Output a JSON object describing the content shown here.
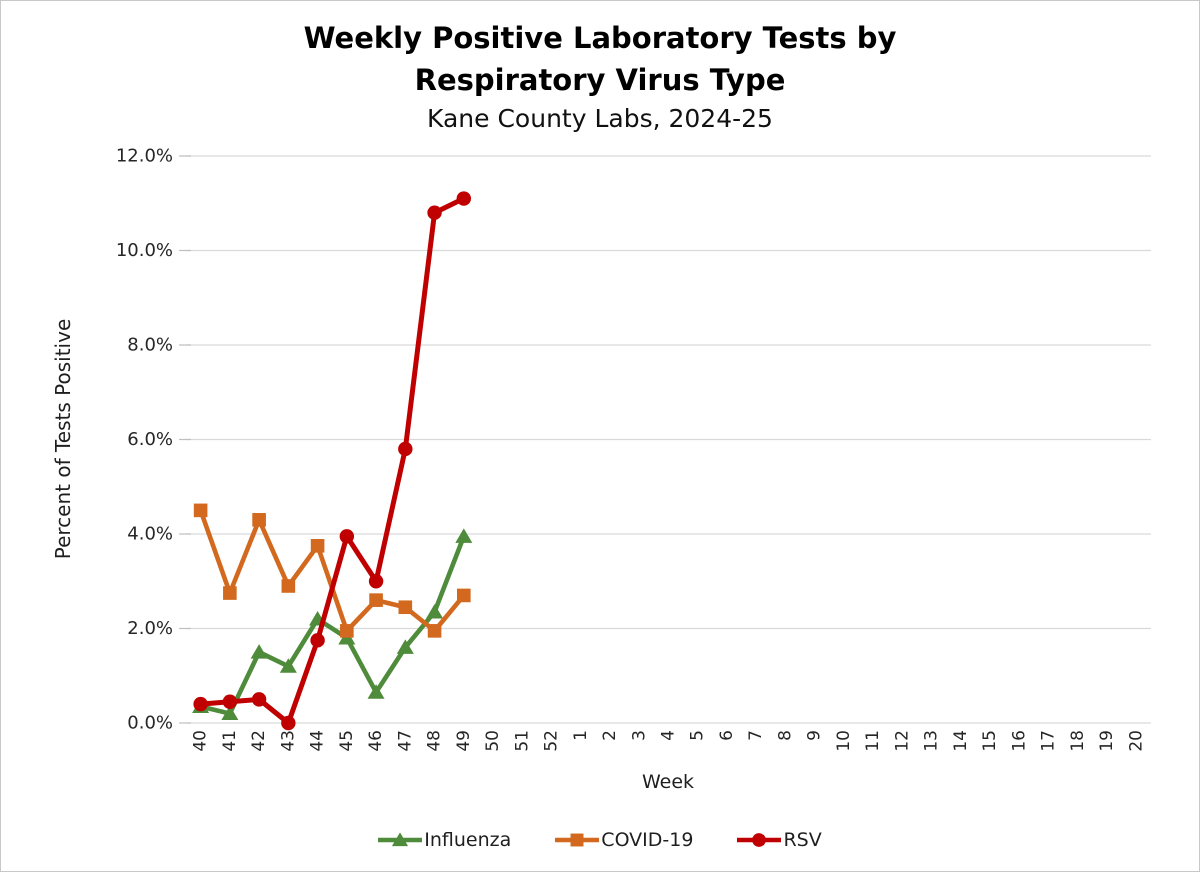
{
  "title_line1": "Weekly Positive Laboratory Tests by",
  "title_line2": "Respiratory Virus Type",
  "subtitle": "Kane County Labs, 2024-25",
  "chart_data": {
    "type": "line",
    "title": "Weekly Positive Laboratory Tests by Respiratory Virus Type",
    "subtitle": "Kane County Labs, 2024-25",
    "xlabel": "Week",
    "ylabel": "Percent of Tests Positive",
    "x_categories": [
      "40",
      "41",
      "42",
      "43",
      "44",
      "45",
      "46",
      "47",
      "48",
      "49",
      "50",
      "51",
      "52",
      "1",
      "2",
      "3",
      "4",
      "5",
      "6",
      "7",
      "8",
      "9",
      "10",
      "11",
      "12",
      "13",
      "14",
      "15",
      "16",
      "17",
      "18",
      "19",
      "20"
    ],
    "y_ticks": [
      "0.0%",
      "2.0%",
      "4.0%",
      "6.0%",
      "8.0%",
      "10.0%",
      "12.0%"
    ],
    "ylim": [
      0,
      12
    ],
    "y_tick_step": 2,
    "grid": "horizontal",
    "gridline_color": "#d9d9d9",
    "tick_color": "#bfbfbf",
    "legend_position": "bottom",
    "series": [
      {
        "name": "Influenza",
        "color": "#4E8B3B",
        "marker": "triangle",
        "values": [
          0.35,
          0.2,
          1.5,
          1.2,
          2.2,
          1.8,
          0.65,
          1.6,
          2.35,
          3.95
        ]
      },
      {
        "name": "COVID-19",
        "color": "#D2691E",
        "marker": "square",
        "values": [
          4.5,
          2.75,
          4.3,
          2.9,
          3.75,
          1.95,
          2.6,
          2.45,
          1.95,
          2.7
        ]
      },
      {
        "name": "RSV",
        "color": "#C00000",
        "marker": "circle",
        "values": [
          0.4,
          0.45,
          0.5,
          0.0,
          1.75,
          3.95,
          3.0,
          5.8,
          10.8,
          11.1
        ]
      }
    ]
  }
}
